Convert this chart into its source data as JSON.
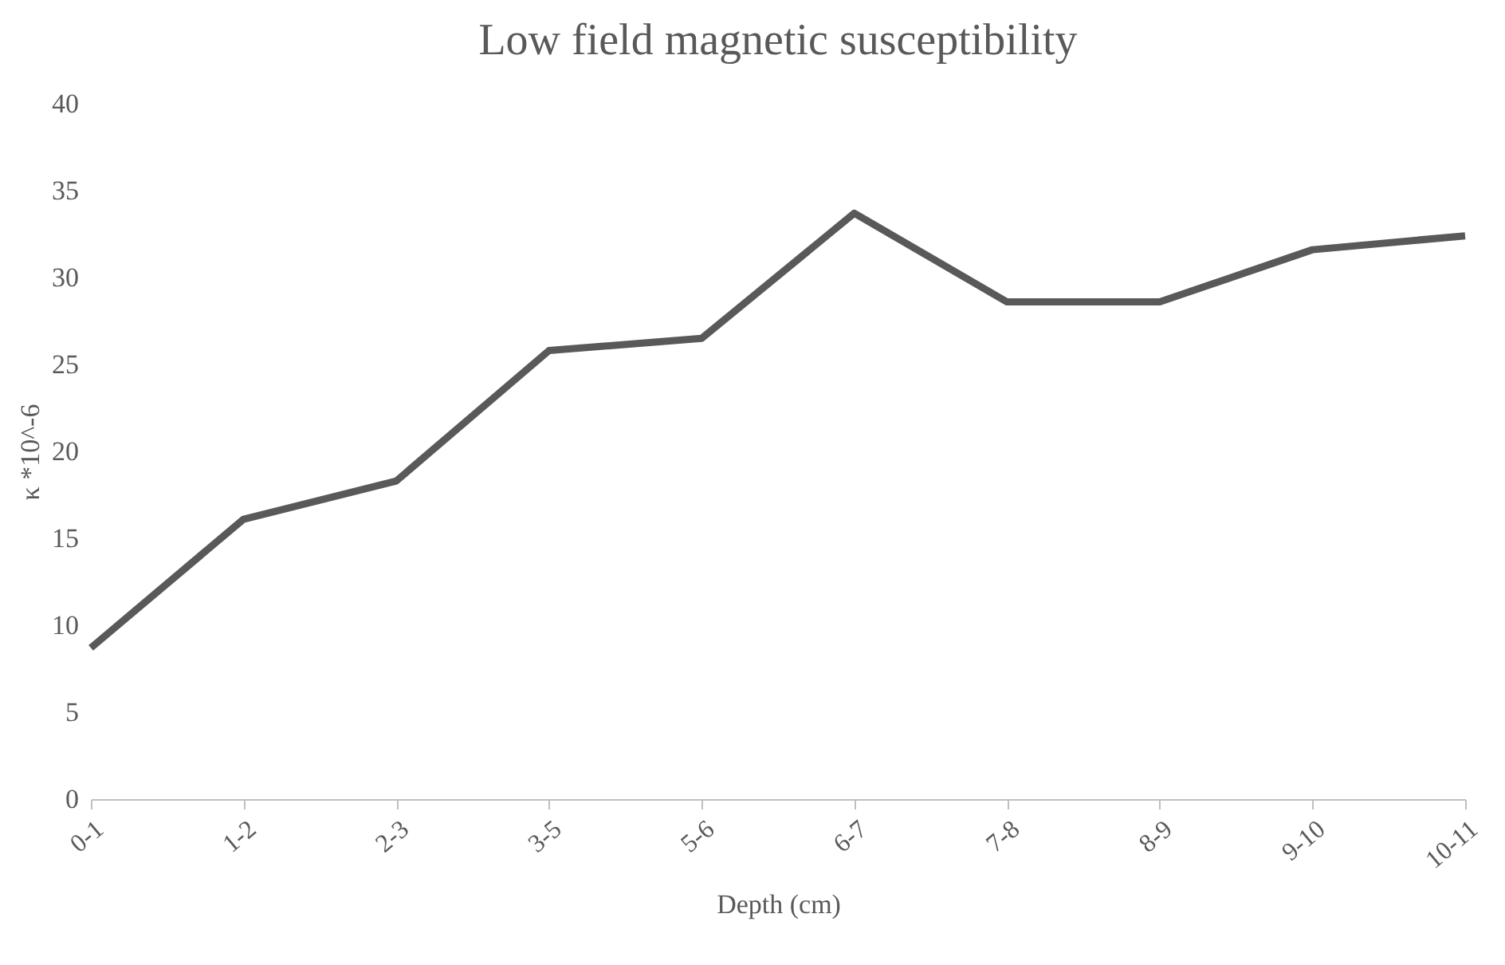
{
  "chart_data": {
    "type": "line",
    "title": "Low field magnetic susceptibility",
    "xlabel": "Depth (cm)",
    "ylabel": "κ *10^-6",
    "categories": [
      "0-1",
      "1-2",
      "2-3",
      "3-5",
      "5-6",
      "6-7",
      "7-8",
      "8-9",
      "9-10",
      "10-11"
    ],
    "series": [
      {
        "color": "#595959",
        "values": [
          8.7,
          16.1,
          18.3,
          25.8,
          26.5,
          33.7,
          28.6,
          28.6,
          31.6,
          32.4
        ]
      }
    ],
    "ylim": [
      0,
      40
    ],
    "yticks": [
      0,
      5,
      10,
      15,
      20,
      25,
      30,
      35,
      40
    ],
    "grid": false,
    "marker": "none",
    "line_style": "solid"
  }
}
